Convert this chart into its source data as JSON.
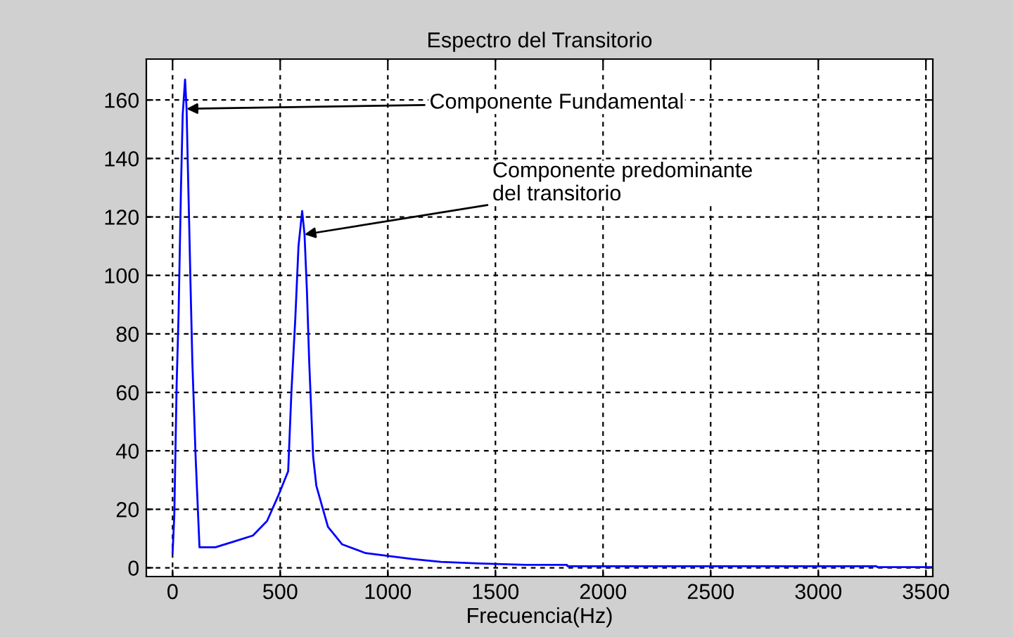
{
  "chart_data": {
    "type": "line",
    "title": "Espectro del Transitorio",
    "xlabel": "Frecuencia(Hz)",
    "xlim": [
      -122,
      3532
    ],
    "ylim": [
      -3,
      174
    ],
    "xticks": [
      0,
      500,
      1000,
      1500,
      2000,
      2500,
      3000,
      3500
    ],
    "yticks": [
      0,
      20,
      40,
      60,
      80,
      100,
      120,
      140,
      160
    ],
    "grid": true,
    "line_style": "solid",
    "marker": "none",
    "series": [
      {
        "color": "#0000ff",
        "x": [
          0,
          8,
          19,
          28,
          39,
          47,
          58,
          65,
          71,
          77,
          83,
          92,
          107,
          125,
          199,
          286,
          373,
          439,
          493,
          537,
          552,
          570,
          585,
          602,
          613,
          624,
          635,
          653,
          668,
          722,
          788,
          897,
          1006,
          1115,
          1246,
          1421,
          1640,
          1832,
          1835,
          3270,
          3275,
          3530
        ],
        "values": [
          5,
          18,
          63,
          87,
          130,
          155,
          167,
          157,
          137,
          118,
          98,
          70,
          38,
          7,
          7,
          9,
          11,
          16,
          25,
          33,
          60,
          85,
          110,
          122,
          114,
          95,
          70,
          38,
          28,
          14,
          8,
          5,
          4,
          3,
          2,
          1.5,
          1,
          1,
          0.5,
          0.5,
          0.2,
          0.2
        ]
      }
    ],
    "annotations": [
      {
        "text": "Componente Fundamental",
        "x": 65,
        "y": 157
      },
      {
        "text": "Componente predominante\ndel transitorio",
        "x": 613,
        "y": 114
      }
    ]
  }
}
